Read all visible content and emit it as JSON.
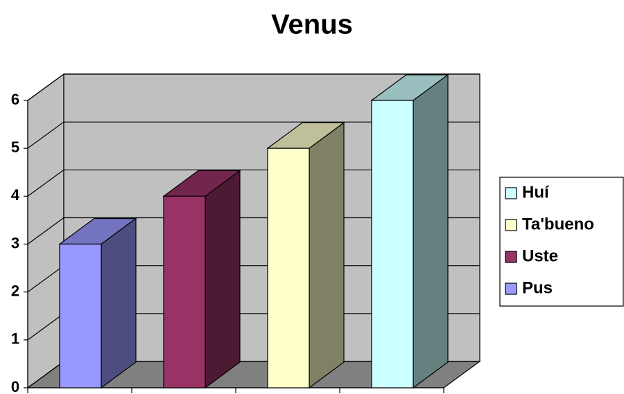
{
  "chart_data": {
    "type": "bar3d",
    "title": "Venus",
    "categories": [
      null
    ],
    "series": [
      {
        "name": "Pus",
        "color": "#9999ff",
        "values": [
          3
        ]
      },
      {
        "name": "Uste",
        "color": "#993366",
        "values": [
          4
        ]
      },
      {
        "name": "Ta'bueno",
        "color": "#ffffcc",
        "values": [
          5
        ]
      },
      {
        "name": "Huí",
        "color": "#ccffff",
        "values": [
          6
        ]
      }
    ],
    "ylim": [
      0,
      6
    ],
    "yticks": [
      0,
      1,
      2,
      3,
      4,
      5,
      6
    ],
    "grid": true,
    "legend": "right"
  }
}
